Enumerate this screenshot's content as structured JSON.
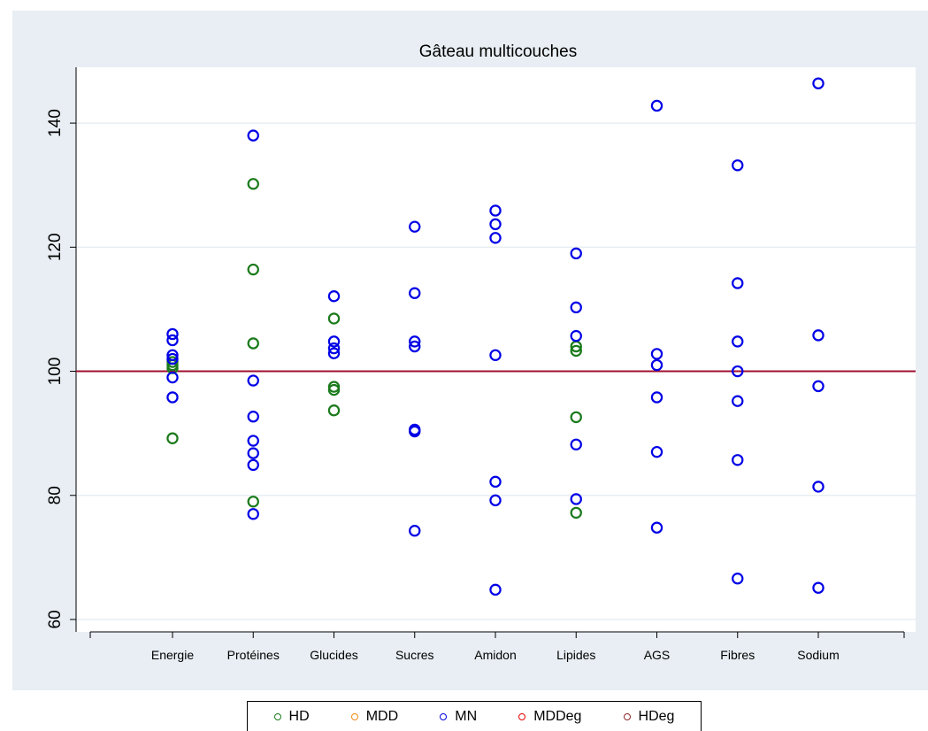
{
  "chart_data": {
    "type": "scatter",
    "title": "Gâteau multicouches",
    "xlabel": "",
    "ylabel": "",
    "categories": [
      "Energie",
      "Protéines",
      "Glucides",
      "Sucres",
      "Amidon",
      "Lipides",
      "AGS",
      "Fibres",
      "Sodium"
    ],
    "ylim": [
      58,
      149
    ],
    "y_ticks": [
      60,
      80,
      100,
      120,
      140
    ],
    "reference_line": {
      "y": 100,
      "color": "#a01030"
    },
    "grid": true,
    "legend_position": "bottom",
    "series": [
      {
        "name": "HD",
        "color": "#1a7a1a",
        "points": [
          {
            "category": "Energie",
            "y": 101.5
          },
          {
            "category": "Energie",
            "y": 101.0
          },
          {
            "category": "Energie",
            "y": 100.5
          },
          {
            "category": "Energie",
            "y": 89.2
          },
          {
            "category": "Protéines",
            "y": 130.2
          },
          {
            "category": "Protéines",
            "y": 116.4
          },
          {
            "category": "Protéines",
            "y": 104.5
          },
          {
            "category": "Protéines",
            "y": 79.0
          },
          {
            "category": "Glucides",
            "y": 108.5
          },
          {
            "category": "Glucides",
            "y": 97.5
          },
          {
            "category": "Glucides",
            "y": 97.0
          },
          {
            "category": "Glucides",
            "y": 93.7
          },
          {
            "category": "Lipides",
            "y": 104.0
          },
          {
            "category": "Lipides",
            "y": 103.3
          },
          {
            "category": "Lipides",
            "y": 92.6
          },
          {
            "category": "Lipides",
            "y": 77.2
          }
        ]
      },
      {
        "name": "MDD",
        "color": "#f08a1c",
        "points": []
      },
      {
        "name": "MN",
        "color": "#0000e6",
        "points": [
          {
            "category": "Energie",
            "y": 106.0
          },
          {
            "category": "Energie",
            "y": 105.0
          },
          {
            "category": "Energie",
            "y": 102.6
          },
          {
            "category": "Energie",
            "y": 102.0
          },
          {
            "category": "Energie",
            "y": 99.0
          },
          {
            "category": "Energie",
            "y": 95.8
          },
          {
            "category": "Protéines",
            "y": 138.0
          },
          {
            "category": "Protéines",
            "y": 98.5
          },
          {
            "category": "Protéines",
            "y": 92.7
          },
          {
            "category": "Protéines",
            "y": 88.8
          },
          {
            "category": "Protéines",
            "y": 86.8
          },
          {
            "category": "Protéines",
            "y": 84.9
          },
          {
            "category": "Protéines",
            "y": 77.0
          },
          {
            "category": "Glucides",
            "y": 112.1
          },
          {
            "category": "Glucides",
            "y": 104.8
          },
          {
            "category": "Glucides",
            "y": 103.7
          },
          {
            "category": "Glucides",
            "y": 102.9
          },
          {
            "category": "Sucres",
            "y": 123.3
          },
          {
            "category": "Sucres",
            "y": 112.6
          },
          {
            "category": "Sucres",
            "y": 104.8
          },
          {
            "category": "Sucres",
            "y": 104.0
          },
          {
            "category": "Sucres",
            "y": 90.6
          },
          {
            "category": "Sucres",
            "y": 90.3
          },
          {
            "category": "Sucres",
            "y": 74.3
          },
          {
            "category": "Amidon",
            "y": 125.9
          },
          {
            "category": "Amidon",
            "y": 123.7
          },
          {
            "category": "Amidon",
            "y": 121.5
          },
          {
            "category": "Amidon",
            "y": 102.6
          },
          {
            "category": "Amidon",
            "y": 82.2
          },
          {
            "category": "Amidon",
            "y": 79.2
          },
          {
            "category": "Amidon",
            "y": 64.8
          },
          {
            "category": "Lipides",
            "y": 119.0
          },
          {
            "category": "Lipides",
            "y": 110.3
          },
          {
            "category": "Lipides",
            "y": 105.7
          },
          {
            "category": "Lipides",
            "y": 88.2
          },
          {
            "category": "Lipides",
            "y": 79.4
          },
          {
            "category": "AGS",
            "y": 142.8
          },
          {
            "category": "AGS",
            "y": 102.8
          },
          {
            "category": "AGS",
            "y": 101.0
          },
          {
            "category": "AGS",
            "y": 95.8
          },
          {
            "category": "AGS",
            "y": 87.0
          },
          {
            "category": "AGS",
            "y": 74.8
          },
          {
            "category": "Fibres",
            "y": 133.2
          },
          {
            "category": "Fibres",
            "y": 114.2
          },
          {
            "category": "Fibres",
            "y": 104.8
          },
          {
            "category": "Fibres",
            "y": 100.0
          },
          {
            "category": "Fibres",
            "y": 95.2
          },
          {
            "category": "Fibres",
            "y": 85.7
          },
          {
            "category": "Fibres",
            "y": 66.6
          },
          {
            "category": "Sodium",
            "y": 146.4
          },
          {
            "category": "Sodium",
            "y": 105.8
          },
          {
            "category": "Sodium",
            "y": 97.6
          },
          {
            "category": "Sodium",
            "y": 81.4
          },
          {
            "category": "Sodium",
            "y": 65.1
          }
        ]
      },
      {
        "name": "MDDeg",
        "color": "#e60000",
        "points": []
      },
      {
        "name": "HDeg",
        "color": "#8b2a2a",
        "points": []
      }
    ]
  }
}
